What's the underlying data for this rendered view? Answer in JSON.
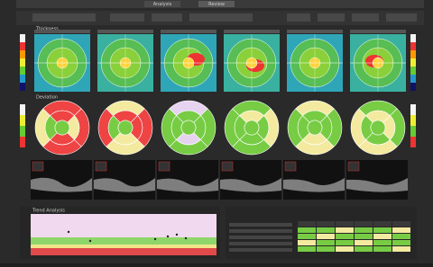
{
  "window": {
    "tabs": [
      "Analysis",
      "Review"
    ],
    "sections": {
      "thickness": "Thickness",
      "deviation": "Deviation",
      "trend": "Trend Analysis"
    }
  }
}
